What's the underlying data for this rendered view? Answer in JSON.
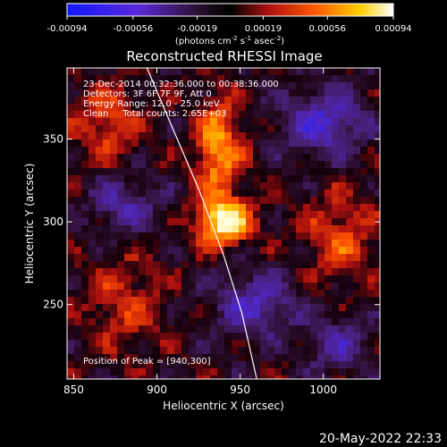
{
  "chart_data": {
    "type": "heatmap",
    "title": "Reconstructed RHESSI Image",
    "xlabel": "Heliocentric X (arcsec)",
    "ylabel": "Heliocentric Y (arcsec)",
    "xlim": [
      846,
      1034
    ],
    "ylim": [
      205,
      393
    ],
    "x_ticks": [
      850,
      900,
      950,
      1000
    ],
    "y_ticks": [
      250,
      300,
      350
    ],
    "colorbar": {
      "ticks": [
        "-0.00094",
        "-0.00056",
        "-0.00019",
        "0.00019",
        "0.00056",
        "0.00094"
      ],
      "range": [
        -0.00094,
        0.00094
      ],
      "unit_prefix": "(photons cm",
      "unit_exp1": "-2",
      "unit_mid": " s",
      "unit_exp2": "-1",
      "unit_mid2": " asec",
      "unit_exp3": "-2",
      "unit_end": ")",
      "colormap": "blue-purple-black-red-orange-yellow-white"
    },
    "annotations": [
      "23-Dec-2014 00:32:36.000 to 00:38:36.000",
      "Detectors: 3F 6F 7F 9F, Att 0",
      "Energy Range: 12.0 - 25.0 keV",
      "Clean     Total counts: 2.65E+03",
      "Position of Peak = [940,300]"
    ],
    "peak": [
      940,
      300
    ],
    "limb_arc": [
      [
        894,
        393
      ],
      [
        908,
        360
      ],
      [
        925,
        320
      ],
      [
        940,
        280
      ],
      [
        951,
        245
      ],
      [
        960,
        205
      ]
    ],
    "timestamp": "20-May-2022 22:33"
  }
}
